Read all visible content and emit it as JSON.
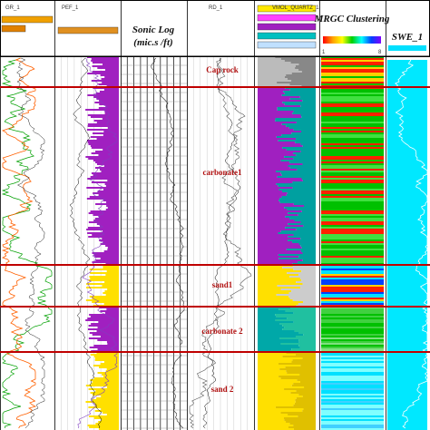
{
  "tracks": [
    {
      "header": "GR_1"
    },
    {
      "header": "PEF_1"
    },
    {
      "header": "Sonic Log",
      "subheader": "(mic.s /ft)"
    },
    {
      "header": "RD_1"
    },
    {
      "header": "VMOL_QUARTZ_1"
    },
    {
      "header": "MRGC Clustering",
      "scale_min": "1",
      "scale_max": "8"
    },
    {
      "header": "SWE_1"
    }
  ],
  "zones": [
    "Cap rock",
    "carbonate1",
    "sand1",
    "carbonate 2",
    "sand 2"
  ]
}
